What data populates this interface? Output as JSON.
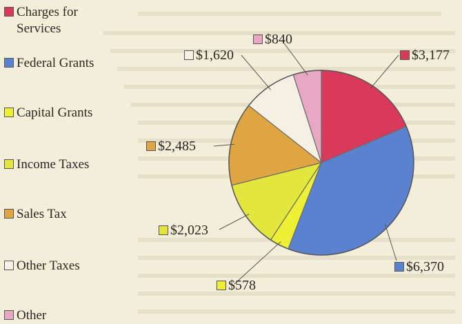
{
  "chart_data": {
    "type": "pie",
    "title": "",
    "slices": [
      {
        "label": "Charges for Services",
        "value": 3177,
        "value_label": "$3,177",
        "color": "#d93a5c"
      },
      {
        "label": "Federal Grants",
        "value": 6370,
        "value_label": "$6,370",
        "color": "#5b82cf"
      },
      {
        "label": "Capital Grants",
        "value": 578,
        "value_label": "$578",
        "color": "#eef036"
      },
      {
        "label": "Income Taxes",
        "value": 2023,
        "value_label": "$2,023",
        "color": "#e3e63c"
      },
      {
        "label": "Sales Tax",
        "value": 2485,
        "value_label": "$2,485",
        "color": "#dfa542"
      },
      {
        "label": "Other Taxes",
        "value": 1620,
        "value_label": "$1,620",
        "color": "#f4f1e4"
      },
      {
        "label": "Other",
        "value": 840,
        "value_label": "$840",
        "color": "#e7a7c2"
      }
    ],
    "start_angle_deg": 0,
    "direction": "clockwise",
    "legend_position": "left",
    "legend": [
      {
        "lines": [
          "Charges for",
          "Services"
        ],
        "color": "#d93a5c"
      },
      {
        "lines": [
          "Federal Grants"
        ],
        "color": "#5b82cf"
      },
      {
        "lines": [
          "Capital Grants"
        ],
        "color": "#eef036"
      },
      {
        "lines": [
          "Income Taxes"
        ],
        "color": "#e3e63c"
      },
      {
        "lines": [
          "Sales Tax"
        ],
        "color": "#dfa542"
      },
      {
        "lines": [
          "Other Taxes"
        ],
        "color": "#f4f1e4"
      },
      {
        "lines": [
          "Other"
        ],
        "color": "#e7a7c2"
      }
    ]
  }
}
